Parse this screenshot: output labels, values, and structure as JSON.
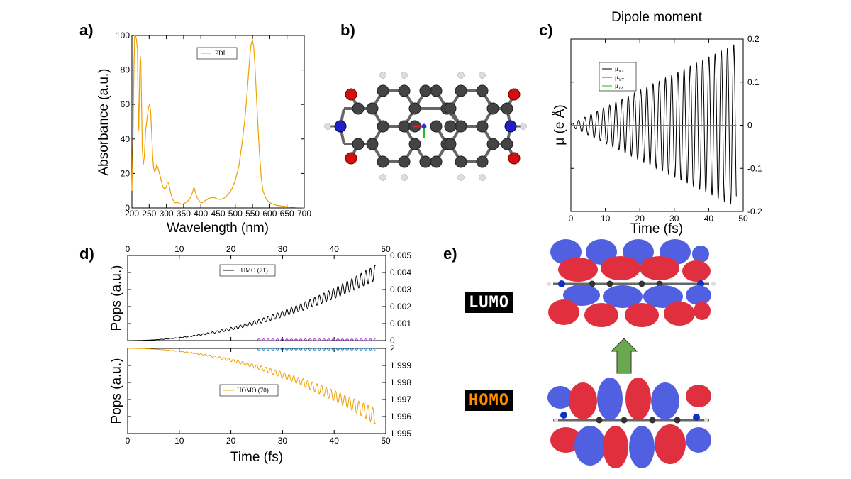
{
  "panels": {
    "a": "a)",
    "b": "b)",
    "c": "c)",
    "d": "d)",
    "e": "e)"
  },
  "colors": {
    "orange": "#f0a000",
    "black": "#000000",
    "red": "#ff0000",
    "green": "#00cc00",
    "blue_lobe": "#5060e0",
    "red_lobe": "#e0303f",
    "arrow_green": "#6aa84f",
    "lumo_text": "#ffffff",
    "homo_text": "#ff8c00"
  },
  "chart_data": [
    {
      "id": "absorbance",
      "type": "line",
      "xlabel": "Wavelength (nm)",
      "ylabel": "Absorbance (a.u.)",
      "xlim": [
        200,
        700
      ],
      "ylim": [
        0,
        100
      ],
      "xticks": [
        200,
        250,
        300,
        350,
        400,
        450,
        500,
        550,
        600,
        650,
        700
      ],
      "yticks": [
        0,
        20,
        40,
        60,
        80,
        100
      ],
      "legend_position": "top-center",
      "series": [
        {
          "name": "PDI",
          "color": "#f0a000",
          "x": [
            200,
            203,
            206,
            208,
            210,
            213,
            216,
            218,
            220,
            222,
            224,
            226,
            228,
            230,
            233,
            236,
            240,
            244,
            248,
            251,
            254,
            257,
            260,
            263,
            266,
            269,
            272,
            276,
            280,
            285,
            290,
            295,
            300,
            303,
            306,
            309,
            312,
            318,
            325,
            335,
            345,
            355,
            362,
            370,
            376,
            380,
            383,
            386,
            389,
            392,
            396,
            400,
            405,
            410,
            420,
            430,
            440,
            450,
            460,
            470,
            480,
            490,
            500,
            510,
            520,
            528,
            534,
            540,
            544,
            547,
            550,
            553,
            556,
            560,
            565,
            570,
            575,
            580,
            590,
            600,
            620,
            640,
            660,
            680,
            700
          ],
          "y": [
            10,
            40,
            82,
            100,
            100,
            98,
            92,
            62,
            45,
            74,
            88,
            85,
            60,
            35,
            25,
            30,
            45,
            52,
            58,
            60,
            57,
            45,
            30,
            23,
            21,
            22,
            25,
            23,
            20,
            16,
            12,
            11,
            12,
            15,
            15,
            12,
            9,
            5,
            3,
            3,
            2,
            3,
            4,
            6,
            9,
            12,
            10,
            8,
            6,
            5,
            4,
            3,
            3,
            4,
            5,
            6,
            6,
            5,
            5,
            6,
            8,
            11,
            16,
            24,
            38,
            52,
            66,
            82,
            92,
            96,
            97,
            94,
            86,
            70,
            50,
            32,
            18,
            10,
            5,
            3,
            1.5,
            1,
            0.5,
            0.3,
            0.2
          ]
        }
      ]
    },
    {
      "id": "dipole",
      "type": "line",
      "title": "Dipole moment",
      "xlabel": "Time (fs)",
      "ylabel": "μ (e Å)",
      "xlim": [
        0,
        50
      ],
      "ylim": [
        -0.2,
        0.2
      ],
      "xticks": [
        0,
        10,
        20,
        30,
        40,
        50
      ],
      "yticks": [
        0.2,
        0.1,
        0,
        -0.1,
        -0.2
      ],
      "y_axis_side": "right",
      "legend_position": "top-left",
      "series": [
        {
          "name": "μXX",
          "color": "#000000",
          "model": "growing oscillation",
          "period_fs": 1.8,
          "amplitude_start": 0.003,
          "amplitude_end": 0.19,
          "t_end": 48
        },
        {
          "name": "μYY",
          "color": "#ff0000",
          "constant": 0
        },
        {
          "name": "μZZ",
          "color": "#00cc00",
          "constant": 0
        }
      ],
      "legend_labels": [
        {
          "base": "μ",
          "sub": "XX"
        },
        {
          "base": "μ",
          "sub": "YY"
        },
        {
          "base": "μ",
          "sub": "ZZ"
        }
      ]
    },
    {
      "id": "lumo_pops",
      "type": "line",
      "ylabel": "Pops (a.u.)",
      "xlim": [
        0,
        50
      ],
      "ylim": [
        0,
        0.005
      ],
      "xticks_top": [
        0,
        10,
        20,
        30,
        40,
        50
      ],
      "yticks": [
        0,
        0.001,
        0.002,
        0.003,
        0.004,
        0.005
      ],
      "ytick_labels": [
        "0",
        "0.001",
        "0.002",
        "0.003",
        "0.004",
        "0.005"
      ],
      "y_axis_side": "right",
      "legend_position": "top-center",
      "series": [
        {
          "name": "LUMO (71)",
          "color": "#000000",
          "model": "growing oscillation (quadratic)",
          "period_fs": 0.9,
          "value_end": 0.004,
          "amp_end": 0.0005,
          "t_end": 48
        }
      ]
    },
    {
      "id": "homo_pops",
      "type": "line",
      "xlabel": "Time (fs)",
      "ylabel": "Pops (a.u.)",
      "xlim": [
        0,
        50
      ],
      "ylim": [
        1.995,
        2
      ],
      "xticks": [
        0,
        10,
        20,
        30,
        40,
        50
      ],
      "yticks": [
        2,
        1.999,
        1.998,
        1.997,
        1.996,
        1.995
      ],
      "ytick_labels": [
        "2",
        "1.999",
        "1.998",
        "1.997",
        "1.996",
        "1.995"
      ],
      "y_axis_side": "right",
      "legend_position": "center",
      "series": [
        {
          "name": "HOMO (70)",
          "color": "#f0a000",
          "model": "decaying oscillation (quadratic)",
          "period_fs": 0.9,
          "value_end": 1.996,
          "amp_end": 0.0005,
          "t_end": 48
        }
      ]
    }
  ],
  "orbitals": {
    "lumo_label": "LUMO",
    "homo_label": "HOMO"
  }
}
